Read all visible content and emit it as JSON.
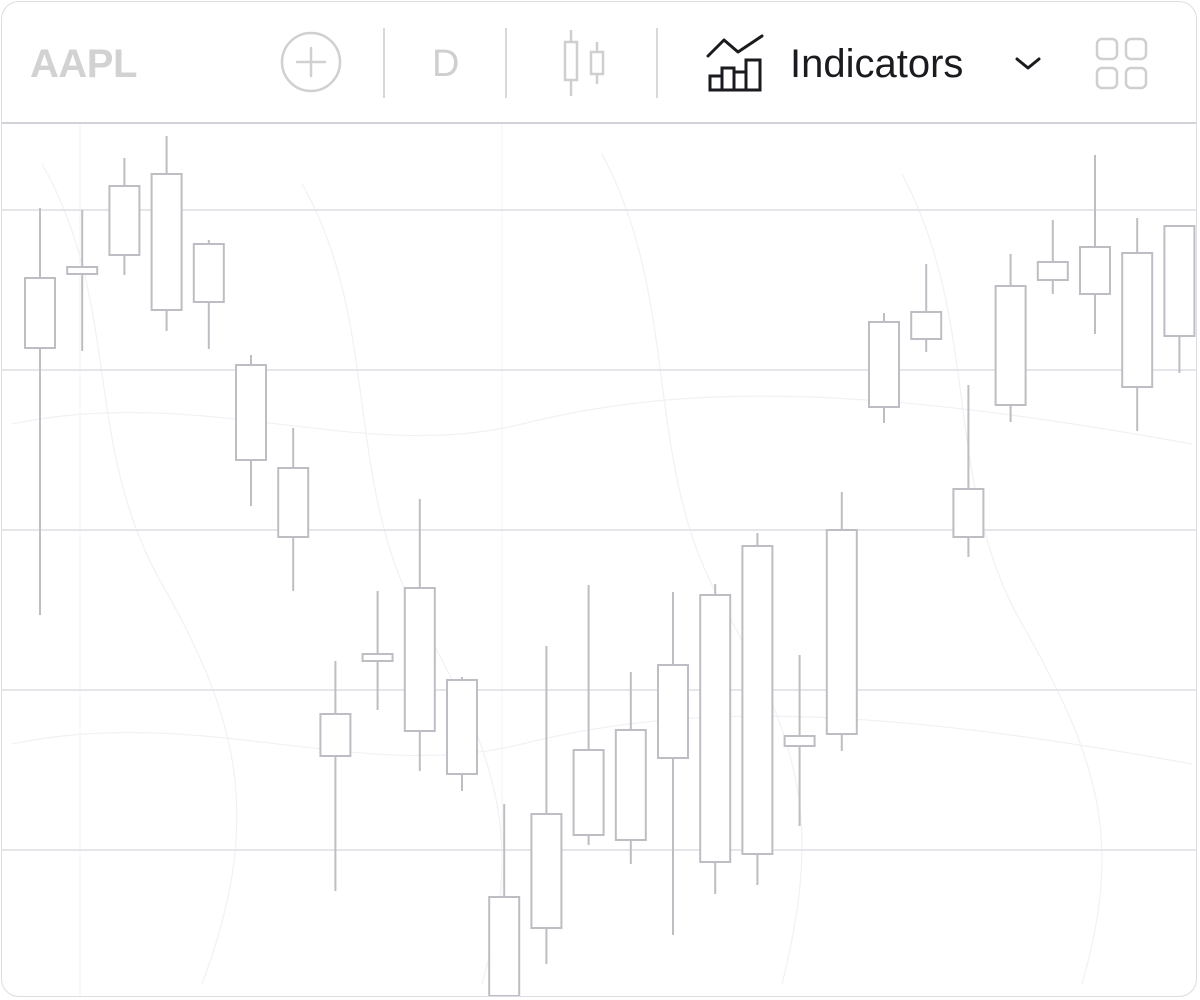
{
  "toolbar": {
    "symbol": "AAPL",
    "add_icon": "plus-circle-icon",
    "interval": "D",
    "chart_type_icon": "candlestick-icon",
    "indicators_icon": "chart-indicators-icon",
    "indicators_label": "Indicators",
    "dropdown_icon": "chevron-down-icon",
    "layout_icon": "grid-layout-icon"
  },
  "colors": {
    "candle_stroke": "#bdbdc3",
    "grid": "#e6e6ea",
    "toolbar_text_active": "#1a1a1f",
    "toolbar_text_muted": "#cfcfcf"
  },
  "chart_data": {
    "type": "candlestick",
    "candles": [
      {
        "open": 720,
        "close": 650,
        "high": 790,
        "low": 383
      },
      {
        "open": 731,
        "close": 724,
        "high": 788,
        "low": 647
      },
      {
        "open": 743,
        "close": 812,
        "high": 840,
        "low": 723
      },
      {
        "open": 688,
        "close": 824,
        "high": 862,
        "low": 667
      },
      {
        "open": 696,
        "close": 754,
        "high": 758,
        "low": 649
      },
      {
        "open": 633,
        "close": 538,
        "high": 643,
        "low": 492
      },
      {
        "open": 461,
        "close": 530,
        "high": 570,
        "low": 407
      },
      {
        "open": 284,
        "close": 242,
        "high": 337,
        "low": 107
      },
      {
        "open": 337,
        "close": 344,
        "high": 407,
        "low": 288
      },
      {
        "open": 267,
        "close": 410,
        "high": 499,
        "low": 227
      },
      {
        "open": 224,
        "close": 318,
        "high": 321,
        "low": 207
      },
      {
        "open": 2,
        "close": 101,
        "high": 194,
        "low": 2
      },
      {
        "open": 70,
        "close": 184,
        "high": 352,
        "low": 34
      },
      {
        "open": 163,
        "close": 248,
        "high": 413,
        "low": 153
      },
      {
        "open": 158,
        "close": 268,
        "high": 326,
        "low": 134
      },
      {
        "open": 240,
        "close": 333,
        "high": 406,
        "low": 63
      },
      {
        "open": 136,
        "close": 403,
        "high": 414,
        "low": 104
      },
      {
        "open": 144,
        "close": 452,
        "high": 465,
        "low": 113
      },
      {
        "open": 252,
        "close": 262,
        "high": 343,
        "low": 172
      },
      {
        "open": 264,
        "close": 468,
        "high": 506,
        "low": 247
      },
      {
        "open": 591,
        "close": 676,
        "high": 685,
        "low": 575
      },
      {
        "open": 659,
        "close": 686,
        "high": 734,
        "low": 646
      },
      {
        "open": 461,
        "close": 509,
        "high": 613,
        "low": 441
      },
      {
        "open": 593,
        "close": 712,
        "high": 744,
        "low": 576
      },
      {
        "open": 718,
        "close": 736,
        "high": 778,
        "low": 704
      },
      {
        "open": 704,
        "close": 751,
        "high": 843,
        "low": 664
      },
      {
        "open": 611,
        "close": 745,
        "high": 780,
        "low": 567
      },
      {
        "open": 662,
        "close": 772,
        "high": 772,
        "low": 625
      }
    ]
  }
}
